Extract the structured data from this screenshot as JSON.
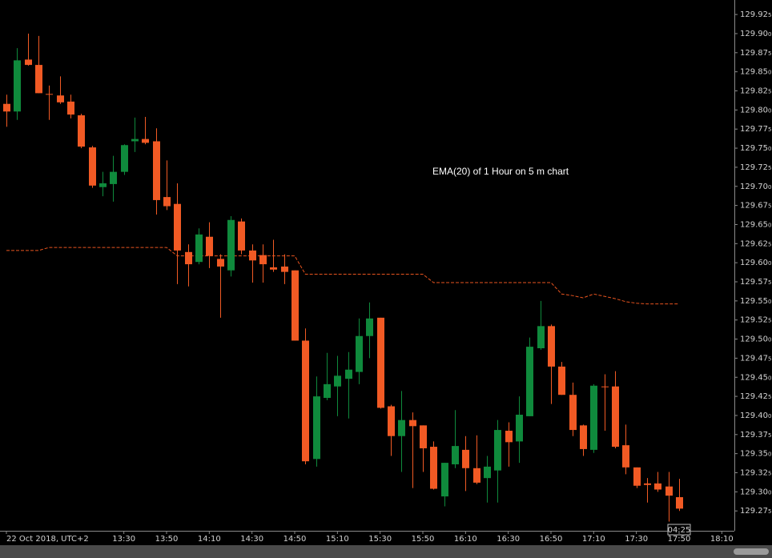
{
  "chart_data": {
    "type": "candlestick",
    "annotation": "EMA(20) of 1 Hour on 5 m chart",
    "countdown": "04:25",
    "up_color": "#0f8a3c",
    "down_color": "#f15a24",
    "x": [
      "12:35",
      "12:40",
      "12:45",
      "12:50",
      "12:55",
      "13:00",
      "13:05",
      "13:10",
      "13:15",
      "13:20",
      "13:25",
      "13:30",
      "13:35",
      "13:40",
      "13:45",
      "13:50",
      "13:55",
      "14:00",
      "14:05",
      "14:10",
      "14:15",
      "14:20",
      "14:25",
      "14:30",
      "14:35",
      "14:40",
      "14:45",
      "14:50",
      "14:55",
      "15:00",
      "15:05",
      "15:10",
      "15:15",
      "15:20",
      "15:25",
      "15:30",
      "15:35",
      "15:40",
      "15:45",
      "15:50",
      "15:55",
      "16:00",
      "16:05",
      "16:10",
      "16:15",
      "16:20",
      "16:25",
      "16:30",
      "16:35",
      "16:40",
      "16:45",
      "16:50",
      "16:55",
      "17:00",
      "17:05",
      "17:10",
      "17:15",
      "17:20",
      "17:25",
      "17:30",
      "17:35",
      "17:40",
      "17:45",
      "17:50"
    ],
    "open": [
      129.808,
      129.798,
      129.866,
      129.859,
      129.821,
      129.819,
      129.811,
      129.793,
      129.751,
      129.699,
      129.703,
      129.719,
      129.759,
      129.762,
      129.759,
      129.686,
      129.677,
      129.614,
      129.601,
      129.634,
      129.605,
      129.59,
      129.654,
      129.616,
      129.61,
      129.594,
      129.595,
      129.59,
      129.498,
      129.343,
      129.423,
      129.438,
      129.448,
      129.457,
      129.504,
      129.528,
      129.412,
      129.373,
      129.394,
      129.387,
      129.359,
      129.294,
      129.336,
      129.355,
      129.331,
      129.318,
      129.328,
      129.38,
      129.366,
      129.399,
      129.488,
      129.517,
      129.464,
      129.427,
      129.387,
      129.355,
      129.438,
      129.438,
      129.361,
      129.332,
      129.311,
      129.311,
      129.307,
      129.293
    ],
    "high": [
      129.82,
      129.881,
      129.9,
      129.897,
      129.832,
      129.844,
      129.82,
      129.795,
      129.753,
      129.719,
      129.74,
      129.755,
      129.79,
      129.791,
      129.776,
      129.734,
      129.704,
      129.624,
      129.645,
      129.653,
      129.611,
      129.661,
      129.658,
      129.624,
      129.624,
      129.63,
      129.611,
      129.59,
      129.514,
      129.451,
      129.482,
      129.478,
      129.483,
      129.527,
      129.548,
      129.528,
      129.414,
      129.432,
      129.404,
      129.387,
      129.366,
      129.338,
      129.407,
      129.373,
      129.374,
      129.347,
      129.394,
      129.391,
      129.425,
      129.502,
      129.55,
      129.519,
      129.47,
      129.443,
      129.388,
      129.441,
      129.454,
      129.458,
      129.388,
      129.332,
      129.318,
      129.326,
      129.326,
      129.317
    ],
    "low": [
      129.778,
      129.787,
      129.858,
      129.822,
      129.787,
      129.808,
      129.789,
      129.75,
      129.698,
      129.687,
      129.68,
      129.715,
      129.745,
      129.755,
      129.663,
      129.669,
      129.572,
      129.569,
      129.598,
      129.593,
      129.528,
      129.582,
      129.611,
      129.574,
      129.574,
      129.588,
      129.572,
      129.498,
      129.336,
      129.333,
      129.42,
      129.399,
      129.396,
      129.441,
      129.475,
      129.409,
      129.347,
      129.326,
      129.305,
      129.326,
      129.303,
      129.281,
      129.331,
      129.301,
      129.31,
      129.286,
      129.286,
      129.333,
      129.338,
      129.399,
      129.486,
      129.415,
      129.427,
      129.373,
      129.347,
      129.351,
      129.38,
      129.357,
      129.323,
      129.305,
      129.286,
      129.3,
      129.261,
      129.275
    ],
    "close": [
      129.798,
      129.865,
      129.859,
      129.822,
      129.82,
      129.81,
      129.794,
      129.752,
      129.701,
      129.704,
      129.719,
      129.754,
      129.762,
      129.757,
      129.682,
      129.674,
      129.616,
      129.598,
      129.637,
      129.609,
      129.595,
      129.656,
      129.616,
      129.603,
      129.598,
      129.591,
      129.588,
      129.498,
      129.34,
      129.425,
      129.441,
      129.452,
      129.46,
      129.504,
      129.527,
      129.41,
      129.373,
      129.394,
      129.386,
      129.357,
      129.304,
      129.338,
      129.36,
      129.331,
      129.312,
      129.333,
      129.381,
      129.365,
      129.401,
      129.49,
      129.517,
      129.464,
      129.427,
      129.381,
      129.356,
      129.439,
      129.437,
      129.359,
      129.332,
      129.308,
      129.309,
      129.303,
      129.295,
      129.278
    ],
    "ema": {
      "color": "#e8541f",
      "values": [
        129.616,
        129.616,
        129.616,
        129.616,
        129.62,
        129.62,
        129.62,
        129.62,
        129.62,
        129.62,
        129.62,
        129.62,
        129.62,
        129.62,
        129.62,
        129.62,
        129.609,
        129.609,
        129.609,
        129.609,
        129.609,
        129.609,
        129.609,
        129.609,
        129.609,
        129.609,
        129.609,
        129.609,
        129.585,
        129.585,
        129.585,
        129.585,
        129.585,
        129.585,
        129.585,
        129.585,
        129.585,
        129.585,
        129.585,
        129.585,
        129.574,
        129.574,
        129.574,
        129.574,
        129.574,
        129.574,
        129.574,
        129.574,
        129.574,
        129.574,
        129.574,
        129.574,
        129.559,
        129.557,
        129.554,
        129.559,
        129.556,
        129.553,
        129.549,
        129.547,
        129.546,
        129.546,
        129.546,
        129.546
      ]
    },
    "xticks": [
      {
        "value": "12:35",
        "label": "22 Oct 2018, UTC+2"
      },
      "13:30",
      "13:50",
      "14:10",
      "14:30",
      "14:50",
      "15:10",
      "15:30",
      "15:50",
      "16:10",
      "16:30",
      "16:50",
      "17:10",
      "17:30",
      "17:50",
      "18:10"
    ],
    "ylim": [
      129.249,
      129.944
    ],
    "yticks": [
      129.925,
      {
        "value": 129.9,
        "label": "129.900"
      },
      129.875,
      {
        "value": 129.85,
        "label": "129.850"
      },
      129.825,
      {
        "value": 129.8,
        "label": "129.800"
      },
      129.775,
      {
        "value": 129.75,
        "label": "129.750"
      },
      129.725,
      {
        "value": 129.7,
        "label": "129.700"
      },
      129.675,
      {
        "value": 129.65,
        "label": "129.650"
      },
      129.625,
      {
        "value": 129.6,
        "label": "129.600"
      },
      129.575,
      {
        "value": 129.55,
        "label": "129.550"
      },
      129.525,
      {
        "value": 129.5,
        "label": "129.500"
      },
      129.475,
      {
        "value": 129.45,
        "label": "129.450"
      },
      129.425,
      {
        "value": 129.4,
        "label": "129.400"
      },
      129.375,
      {
        "value": 129.35,
        "label": "129.350"
      },
      129.325,
      {
        "value": 129.3,
        "label": "129.300"
      },
      129.275
    ]
  }
}
